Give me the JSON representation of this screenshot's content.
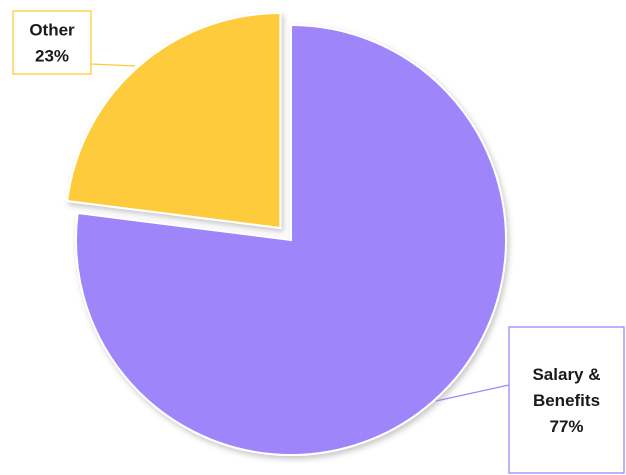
{
  "chart_data": {
    "type": "pie",
    "title": "",
    "slices": [
      {
        "name": "Salary & Benefits",
        "name_lines": [
          "Salary &",
          "Benefits"
        ],
        "value": 77,
        "label": "77%",
        "color": "#9e85f9",
        "exploded": false
      },
      {
        "name": "Other",
        "name_lines": [
          "Other"
        ],
        "value": 23,
        "label": "23%",
        "color": "#fdcb3a",
        "exploded": true
      }
    ],
    "label_box_border_colors": {
      "Other": "#fdcb3a",
      "Salary & Benefits": "#9e85f9"
    },
    "legend": "none",
    "start_angle": "12 o'clock, clockwise"
  }
}
